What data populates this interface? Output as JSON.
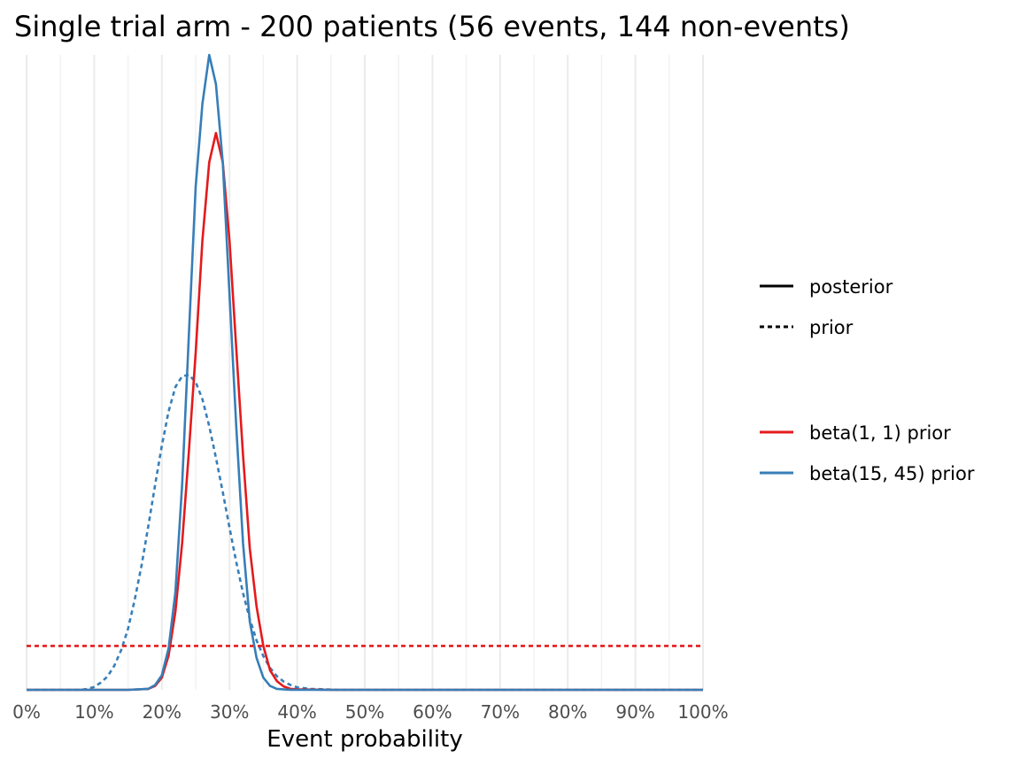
{
  "chart_data": {
    "type": "line",
    "title": "Single trial arm - 200 patients (56 events, 144 non-events)",
    "xlabel": "Event probability",
    "ylabel": "",
    "xlim": [
      0,
      1
    ],
    "ylim": [
      0,
      13
    ],
    "grid": "vertical",
    "x_ticks": [
      "0%",
      "10%",
      "20%",
      "30%",
      "40%",
      "50%",
      "60%",
      "70%",
      "80%",
      "90%",
      "100%"
    ],
    "x_tick_values": [
      0,
      0.1,
      0.2,
      0.3,
      0.4,
      0.5,
      0.6,
      0.7,
      0.8,
      0.9,
      1.0
    ],
    "legend": {
      "position": "right",
      "linetype": [
        {
          "label": "posterior",
          "style": "solid"
        },
        {
          "label": "prior",
          "style": "dashed"
        }
      ],
      "color": [
        {
          "label": "beta(1, 1) prior",
          "color": "#e41a1c"
        },
        {
          "label": "beta(15, 45) prior",
          "color": "#377eb8"
        }
      ]
    },
    "series": [
      {
        "prior": "beta(1, 1) prior",
        "kind": "posterior",
        "style": "solid",
        "color": "#e41a1c",
        "x": [
          0,
          0.15,
          0.18,
          0.19,
          0.2,
          0.21,
          0.22,
          0.23,
          0.24,
          0.25,
          0.26,
          0.27,
          0.28,
          0.29,
          0.3,
          0.31,
          0.32,
          0.33,
          0.34,
          0.35,
          0.36,
          0.37,
          0.38,
          0.39,
          0.4,
          0.45,
          1.0
        ],
        "y": [
          0,
          0,
          0.02,
          0.08,
          0.25,
          0.7,
          1.6,
          3.0,
          4.9,
          6.9,
          9.2,
          10.8,
          11.4,
          10.8,
          9.2,
          7.0,
          4.8,
          2.9,
          1.7,
          0.9,
          0.4,
          0.18,
          0.07,
          0.02,
          0.01,
          0,
          0
        ]
      },
      {
        "prior": "beta(15, 45) prior",
        "kind": "posterior",
        "style": "solid",
        "color": "#377eb8",
        "x": [
          0,
          0.15,
          0.18,
          0.19,
          0.2,
          0.21,
          0.22,
          0.23,
          0.24,
          0.25,
          0.26,
          0.27,
          0.28,
          0.29,
          0.3,
          0.31,
          0.32,
          0.33,
          0.34,
          0.35,
          0.36,
          0.37,
          0.38,
          0.39,
          0.4,
          1.0
        ],
        "y": [
          0,
          0,
          0.02,
          0.1,
          0.3,
          0.85,
          2.0,
          4.2,
          7.3,
          10.3,
          12.0,
          13.0,
          12.4,
          10.8,
          8.1,
          5.4,
          3.0,
          1.4,
          0.65,
          0.25,
          0.08,
          0.02,
          0.01,
          0,
          0,
          0
        ]
      },
      {
        "prior": "beta(1, 1) prior",
        "kind": "prior",
        "style": "dashed",
        "color": "#e41a1c",
        "x": [
          0,
          1.0
        ],
        "y": [
          0.9,
          0.9
        ]
      },
      {
        "prior": "beta(15, 45) prior",
        "kind": "prior",
        "style": "dashed",
        "color": "#377eb8",
        "x": [
          0,
          0.08,
          0.09,
          0.1,
          0.11,
          0.12,
          0.13,
          0.14,
          0.15,
          0.16,
          0.17,
          0.18,
          0.19,
          0.2,
          0.21,
          0.22,
          0.23,
          0.24,
          0.25,
          0.26,
          0.27,
          0.28,
          0.29,
          0.3,
          0.31,
          0.32,
          0.33,
          0.34,
          0.35,
          0.36,
          0.37,
          0.38,
          0.39,
          0.4,
          0.42,
          0.44,
          0.46,
          0.5,
          1.0
        ],
        "y": [
          0,
          0,
          0.02,
          0.06,
          0.15,
          0.28,
          0.5,
          0.82,
          1.25,
          1.85,
          2.55,
          3.35,
          4.2,
          5.0,
          5.7,
          6.2,
          6.42,
          6.45,
          6.3,
          5.95,
          5.4,
          4.75,
          4.05,
          3.32,
          2.62,
          1.98,
          1.45,
          1.01,
          0.69,
          0.45,
          0.28,
          0.17,
          0.1,
          0.05,
          0.02,
          0.01,
          0,
          0,
          0
        ]
      }
    ]
  }
}
